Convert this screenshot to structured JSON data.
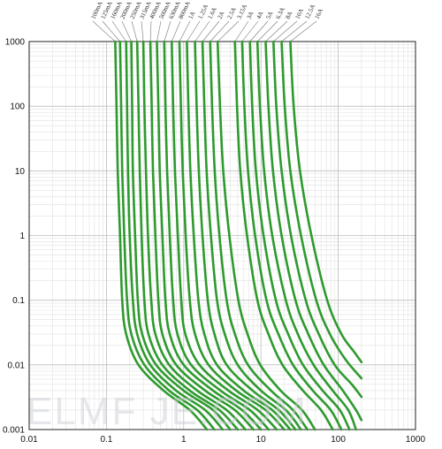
{
  "chart_data": {
    "type": "line",
    "title": "",
    "xlabel": "",
    "ylabel": "",
    "x_scale": "log",
    "y_scale": "log",
    "xlim": [
      0.01,
      1000
    ],
    "ylim": [
      0.001,
      1000
    ],
    "x_ticks": [
      "0.01",
      "0.1",
      "1",
      "10",
      "100",
      "1000"
    ],
    "y_ticks": [
      "1000",
      "100",
      "10",
      "1",
      "0.1",
      "0.01",
      "0.001"
    ],
    "grid": "major and minor",
    "line_color": "#2e9a2e",
    "watermark": "ELMF JE.COM",
    "series": [
      {
        "name": "100mA",
        "points": [
          [
            0.13,
            1000
          ],
          [
            0.135,
            100
          ],
          [
            0.14,
            10
          ],
          [
            0.15,
            1
          ],
          [
            0.16,
            0.1
          ],
          [
            0.18,
            0.03
          ],
          [
            0.26,
            0.01
          ],
          [
            0.55,
            0.004
          ],
          [
            1.2,
            0.002
          ],
          [
            2.0,
            0.001
          ]
        ]
      },
      {
        "name": "125mA",
        "points": [
          [
            0.15,
            1000
          ],
          [
            0.155,
            100
          ],
          [
            0.16,
            10
          ],
          [
            0.17,
            1
          ],
          [
            0.185,
            0.1
          ],
          [
            0.21,
            0.03
          ],
          [
            0.31,
            0.01
          ],
          [
            0.65,
            0.004
          ],
          [
            1.5,
            0.002
          ],
          [
            2.5,
            0.001
          ]
        ]
      },
      {
        "name": "160mA",
        "points": [
          [
            0.18,
            1000
          ],
          [
            0.185,
            100
          ],
          [
            0.19,
            10
          ],
          [
            0.2,
            1
          ],
          [
            0.22,
            0.1
          ],
          [
            0.25,
            0.03
          ],
          [
            0.37,
            0.01
          ],
          [
            0.8,
            0.004
          ],
          [
            1.9,
            0.002
          ],
          [
            3.2,
            0.001
          ]
        ]
      },
      {
        "name": "200mA",
        "points": [
          [
            0.21,
            1000
          ],
          [
            0.215,
            100
          ],
          [
            0.22,
            10
          ],
          [
            0.235,
            1
          ],
          [
            0.255,
            0.1
          ],
          [
            0.29,
            0.03
          ],
          [
            0.44,
            0.01
          ],
          [
            1.0,
            0.004
          ],
          [
            2.4,
            0.002
          ],
          [
            4.0,
            0.001
          ]
        ]
      },
      {
        "name": "250mA",
        "points": [
          [
            0.25,
            1000
          ],
          [
            0.26,
            100
          ],
          [
            0.27,
            10
          ],
          [
            0.285,
            1
          ],
          [
            0.31,
            0.1
          ],
          [
            0.35,
            0.03
          ],
          [
            0.53,
            0.01
          ],
          [
            1.2,
            0.004
          ],
          [
            2.9,
            0.002
          ],
          [
            5.0,
            0.001
          ]
        ]
      },
      {
        "name": "315mA",
        "points": [
          [
            0.3,
            1000
          ],
          [
            0.31,
            100
          ],
          [
            0.325,
            10
          ],
          [
            0.345,
            1
          ],
          [
            0.38,
            0.1
          ],
          [
            0.43,
            0.03
          ],
          [
            0.65,
            0.01
          ],
          [
            1.5,
            0.004
          ],
          [
            3.6,
            0.002
          ],
          [
            6.3,
            0.001
          ]
        ]
      },
      {
        "name": "400mA",
        "points": [
          [
            0.37,
            1000
          ],
          [
            0.385,
            100
          ],
          [
            0.4,
            10
          ],
          [
            0.43,
            1
          ],
          [
            0.47,
            0.1
          ],
          [
            0.53,
            0.03
          ],
          [
            0.8,
            0.01
          ],
          [
            1.9,
            0.004
          ],
          [
            4.6,
            0.002
          ],
          [
            8.0,
            0.001
          ]
        ]
      },
      {
        "name": "500mA",
        "points": [
          [
            0.45,
            1000
          ],
          [
            0.47,
            100
          ],
          [
            0.49,
            10
          ],
          [
            0.53,
            1
          ],
          [
            0.58,
            0.1
          ],
          [
            0.66,
            0.03
          ],
          [
            1.0,
            0.01
          ],
          [
            2.4,
            0.004
          ],
          [
            5.7,
            0.002
          ],
          [
            10,
            0.001
          ]
        ]
      },
      {
        "name": "630mA",
        "points": [
          [
            0.56,
            1000
          ],
          [
            0.58,
            100
          ],
          [
            0.61,
            10
          ],
          [
            0.66,
            1
          ],
          [
            0.73,
            0.1
          ],
          [
            0.83,
            0.03
          ],
          [
            1.25,
            0.01
          ],
          [
            3.0,
            0.004
          ],
          [
            7.2,
            0.002
          ],
          [
            12.6,
            0.001
          ]
        ]
      },
      {
        "name": "800mA",
        "points": [
          [
            0.7,
            1000
          ],
          [
            0.73,
            100
          ],
          [
            0.77,
            10
          ],
          [
            0.84,
            1
          ],
          [
            0.93,
            0.1
          ],
          [
            1.05,
            0.03
          ],
          [
            1.6,
            0.01
          ],
          [
            3.8,
            0.004
          ],
          [
            9.1,
            0.002
          ],
          [
            16,
            0.001
          ]
        ]
      },
      {
        "name": "1A",
        "points": [
          [
            0.88,
            1000
          ],
          [
            0.92,
            100
          ],
          [
            0.97,
            10
          ],
          [
            1.06,
            1
          ],
          [
            1.2,
            0.1
          ],
          [
            1.4,
            0.03
          ],
          [
            2.1,
            0.01
          ],
          [
            4.8,
            0.004
          ],
          [
            11.5,
            0.002
          ],
          [
            20,
            0.001
          ]
        ]
      },
      {
        "name": "1.25A",
        "points": [
          [
            1.1,
            1000
          ],
          [
            1.15,
            100
          ],
          [
            1.22,
            10
          ],
          [
            1.35,
            1
          ],
          [
            1.55,
            0.1
          ],
          [
            1.85,
            0.03
          ],
          [
            2.7,
            0.01
          ],
          [
            6.0,
            0.004
          ],
          [
            14,
            0.002
          ],
          [
            24,
            0.001
          ]
        ]
      },
      {
        "name": "1.6A",
        "points": [
          [
            1.4,
            1000
          ],
          [
            1.47,
            100
          ],
          [
            1.57,
            10
          ],
          [
            1.75,
            1
          ],
          [
            2.05,
            0.1
          ],
          [
            2.5,
            0.03
          ],
          [
            3.6,
            0.01
          ],
          [
            7.8,
            0.004
          ],
          [
            17,
            0.002
          ],
          [
            28,
            0.001
          ]
        ]
      },
      {
        "name": "2A",
        "points": [
          [
            1.75,
            1000
          ],
          [
            1.85,
            100
          ],
          [
            1.98,
            10
          ],
          [
            2.25,
            1
          ],
          [
            2.7,
            0.1
          ],
          [
            3.4,
            0.03
          ],
          [
            5.0,
            0.01
          ],
          [
            10,
            0.004
          ],
          [
            21,
            0.002
          ],
          [
            33,
            0.001
          ]
        ]
      },
      {
        "name": "2.5A",
        "points": [
          [
            2.2,
            1000
          ],
          [
            2.33,
            100
          ],
          [
            2.52,
            10
          ],
          [
            2.9,
            1
          ],
          [
            3.6,
            0.1
          ],
          [
            4.6,
            0.03
          ],
          [
            6.8,
            0.01
          ],
          [
            13.5,
            0.004
          ],
          [
            26,
            0.002
          ],
          [
            40,
            0.001
          ]
        ]
      },
      {
        "name": "3.15A",
        "points": [
          [
            2.75,
            1000
          ],
          [
            2.95,
            100
          ],
          [
            3.25,
            10
          ],
          [
            3.9,
            1
          ],
          [
            5.1,
            0.1
          ],
          [
            6.7,
            0.03
          ],
          [
            9.8,
            0.01
          ],
          [
            18,
            0.004
          ],
          [
            34,
            0.002
          ],
          [
            50,
            0.001
          ]
        ]
      },
      {
        "name": "3A",
        "points": [
          [
            4.6,
            1000
          ],
          [
            4.9,
            100
          ],
          [
            5.4,
            10
          ],
          [
            6.6,
            1
          ],
          [
            9.0,
            0.1
          ],
          [
            12.5,
            0.03
          ],
          [
            19,
            0.01
          ],
          [
            35,
            0.004
          ],
          [
            60,
            0.002
          ],
          [
            85,
            0.001
          ]
        ]
      },
      {
        "name": "4A",
        "points": [
          [
            5.7,
            1000
          ],
          [
            6.1,
            100
          ],
          [
            6.8,
            10
          ],
          [
            8.4,
            1
          ],
          [
            11.8,
            0.1
          ],
          [
            16.8,
            0.03
          ],
          [
            26,
            0.01
          ],
          [
            47,
            0.004
          ],
          [
            80,
            0.002
          ],
          [
            110,
            0.001
          ]
        ]
      },
      {
        "name": "5A",
        "points": [
          [
            7.2,
            1000
          ],
          [
            7.7,
            100
          ],
          [
            8.6,
            10
          ],
          [
            10.8,
            1
          ],
          [
            15.6,
            0.1
          ],
          [
            22.5,
            0.03
          ],
          [
            35,
            0.01
          ],
          [
            63,
            0.004
          ],
          [
            105,
            0.002
          ],
          [
            140,
            0.001
          ]
        ]
      },
      {
        "name": "6.3A",
        "points": [
          [
            9.0,
            1000
          ],
          [
            9.7,
            100
          ],
          [
            11,
            10
          ],
          [
            14,
            1
          ],
          [
            21,
            0.1
          ],
          [
            30,
            0.03
          ],
          [
            48,
            0.01
          ],
          [
            85,
            0.004
          ],
          [
            135,
            0.002
          ],
          [
            170,
            0.001
          ]
        ]
      },
      {
        "name": "8A",
        "points": [
          [
            11.5,
            1000
          ],
          [
            12.5,
            100
          ],
          [
            14.3,
            10
          ],
          [
            18.5,
            1
          ],
          [
            28,
            0.1
          ],
          [
            41,
            0.03
          ],
          [
            65,
            0.01
          ],
          [
            115,
            0.004
          ],
          [
            170,
            0.002
          ],
          [
            200,
            0.0014
          ]
        ]
      },
      {
        "name": "10A",
        "points": [
          [
            14.5,
            1000
          ],
          [
            15.8,
            100
          ],
          [
            18.5,
            10
          ],
          [
            24.5,
            1
          ],
          [
            38,
            0.1
          ],
          [
            56,
            0.03
          ],
          [
            90,
            0.01
          ],
          [
            150,
            0.005
          ],
          [
            200,
            0.0032
          ]
        ]
      },
      {
        "name": "12.5A",
        "points": [
          [
            18.5,
            1000
          ],
          [
            20.3,
            100
          ],
          [
            24,
            10
          ],
          [
            33,
            1
          ],
          [
            52,
            0.1
          ],
          [
            78,
            0.03
          ],
          [
            125,
            0.012
          ],
          [
            200,
            0.0062
          ]
        ]
      },
      {
        "name": "16A",
        "points": [
          [
            24,
            1000
          ],
          [
            26.5,
            100
          ],
          [
            32,
            10
          ],
          [
            45,
            1
          ],
          [
            72,
            0.1
          ],
          [
            110,
            0.03
          ],
          [
            160,
            0.016
          ],
          [
            200,
            0.011
          ]
        ]
      }
    ]
  }
}
